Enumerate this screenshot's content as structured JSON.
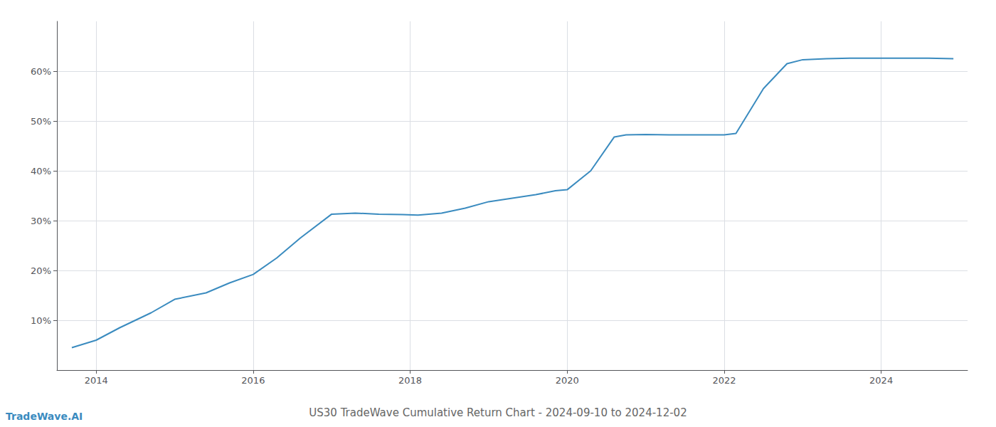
{
  "chart_data": {
    "type": "line",
    "title": "US30 TradeWave Cumulative Return Chart - 2024-09-10 to 2024-12-02",
    "annotations": [
      "TradeWave.AI"
    ],
    "x": [
      2013.69,
      2014.0,
      2014.3,
      2014.7,
      2015.0,
      2015.4,
      2015.7,
      2016.0,
      2016.3,
      2016.6,
      2017.0,
      2017.3,
      2017.6,
      2017.9,
      2018.1,
      2018.4,
      2018.7,
      2019.0,
      2019.3,
      2019.6,
      2019.85,
      2020.0,
      2020.3,
      2020.6,
      2020.75,
      2021.0,
      2021.3,
      2021.6,
      2021.85,
      2022.0,
      2022.15,
      2022.5,
      2022.8,
      2023.0,
      2023.3,
      2023.6,
      2023.85,
      2024.0,
      2024.3,
      2024.6,
      2024.92
    ],
    "values": [
      4.5,
      6.0,
      8.5,
      11.5,
      14.2,
      15.5,
      17.5,
      19.2,
      22.5,
      26.5,
      31.3,
      31.5,
      31.3,
      31.2,
      31.1,
      31.5,
      32.5,
      33.8,
      34.5,
      35.2,
      36.0,
      36.2,
      40.0,
      46.8,
      47.2,
      47.3,
      47.2,
      47.2,
      47.2,
      47.2,
      47.5,
      56.5,
      61.5,
      62.3,
      62.5,
      62.6,
      62.6,
      62.6,
      62.6,
      62.6,
      62.5
    ],
    "color": "#3a8bbf",
    "xlim": [
      2013.5,
      2025.1
    ],
    "ylim": [
      0,
      70
    ],
    "xticks": [
      2014,
      2016,
      2018,
      2020,
      2022,
      2024
    ],
    "yticks": [
      {
        "value": 10,
        "label": "10%"
      },
      {
        "value": 20,
        "label": "20%"
      },
      {
        "value": 30,
        "label": "30%"
      },
      {
        "value": 40,
        "label": "40%"
      },
      {
        "value": 50,
        "label": "50%"
      },
      {
        "value": 60,
        "label": "60%"
      }
    ],
    "grid": true
  }
}
